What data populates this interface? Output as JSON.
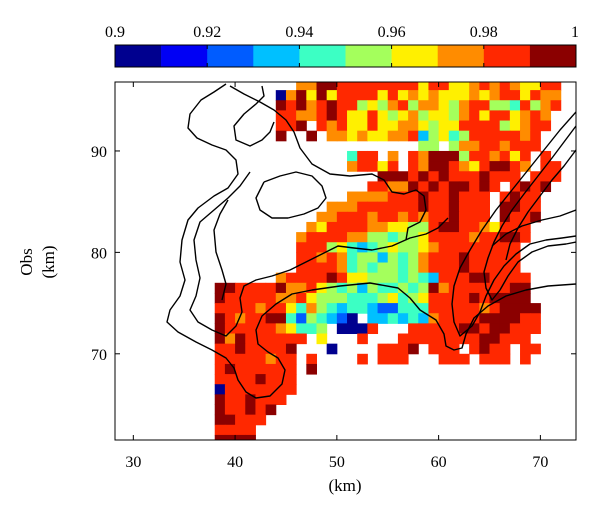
{
  "chart_data": {
    "type": "heatmap",
    "title": "",
    "xlabel": "(km)",
    "ylabel_lines": [
      "Obs",
      "(km)"
    ],
    "xlim": [
      28.2,
      73.5
    ],
    "ylim": [
      61.5,
      96.8
    ],
    "xticks": [
      30,
      40,
      50,
      60,
      70
    ],
    "yticks": [
      70,
      80,
      90
    ],
    "colorbar": {
      "orientation": "horizontal",
      "location": "top",
      "range": [
        0.9,
        1.0
      ],
      "ticks": [
        0.9,
        0.92,
        0.94,
        0.96,
        0.98,
        1
      ],
      "tick_labels": [
        "0.9",
        "0.92",
        "0.94",
        "0.96",
        "0.98",
        "1"
      ],
      "colors": [
        "#00008f",
        "#0000f5",
        "#005cff",
        "#00c0ff",
        "#3cffc4",
        "#a4ff5c",
        "#fff000",
        "#ff8c00",
        "#ff2800",
        "#8b0000"
      ]
    },
    "cell_size_km": 1,
    "grid_origin": {
      "x": 28,
      "y": 96
    },
    "value_encoding": {
      "0": 0.905,
      "1": 0.915,
      "2": 0.925,
      "3": 0.935,
      "4": 0.945,
      "5": 0.955,
      "6": 0.965,
      "7": 0.975,
      "8": 0.985,
      "9": 0.995,
      ".": null
    },
    "rows": [
      "..................77998888888868866787876688",
      "................0796968888686767666767886877",
      "................9897898856578577657885548578",
      "................887789866865675665786886787.",
      "................889.87866866776566888856788.",
      "................9..9.776766778356458888878..",
      "..............................55.577887888..",
      ".......................488.7.879995887868.8.",
      ".......................78868.879987689987.88",
      "..........................99989898889888.888",
      ".........................8877989899898.8989",
      ".......................77778889889888.8988",
      ".....................7778888889889888.9988",
      "....................77888788787889888.9889",
      "...................7688887766558998876888",
      "..................78888775545568888788998",
      "..................8885643456556788888888",
      "..................8878745535457888988888",
      "..................8888745455457888988888",
      "................7888898665554543888998888",
      "..........9988889778654535445459788888899",
      "..........9888887786555444564568888989999",
      "..........88887886475434432244488888789999",
      "..........98788994254320.33434378888999988",
      "..........98888876445.0008...8888899899888",
      "..........979888888.6...8...8888888899888",
      "..........88988889...0....8889.888.8988.88",
      "..........88888788.8....8.888...888.888.8",
      "..........89888888.9.....................",
      "..........88889888.......................",
      "..........08888888.......................",
      "..........9889888........................",
      "..........988989.........................",
      "..........99888..........................",
      "..........8888...........................",
      "..........9999...........................",
      "..........9999...........................",
      "..........9999...........................",
      "..............0..........................",
      "..............3..........................",
      "..............3..........................",
      "..............0.........................."
    ]
  }
}
